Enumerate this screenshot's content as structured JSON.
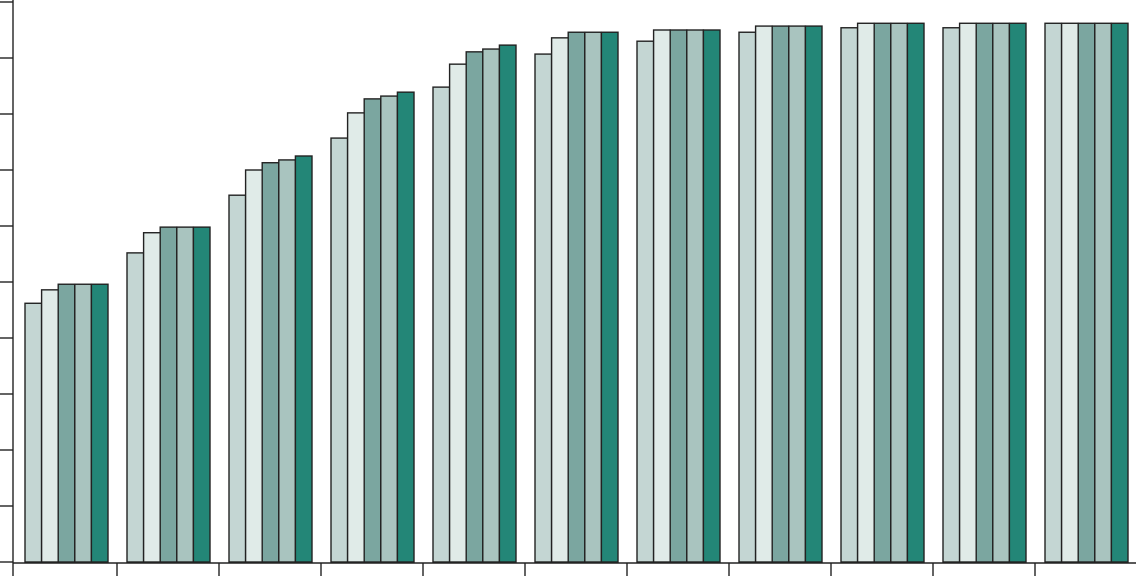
{
  "chart_data": {
    "type": "bar",
    "categories": [
      null,
      null,
      null,
      null,
      null,
      null,
      null,
      null,
      null,
      null,
      null
    ],
    "series": [
      {
        "color": "#c4d6d3",
        "values": [
          4.62,
          5.52,
          6.55,
          7.57,
          8.48,
          9.07,
          9.3,
          9.46,
          9.54,
          9.54,
          9.62
        ]
      },
      {
        "color": "#e0ebe8",
        "values": [
          4.86,
          5.88,
          7.0,
          8.02,
          8.89,
          9.36,
          9.5,
          9.57,
          9.62,
          9.62,
          9.62
        ]
      },
      {
        "color": "#7ba6a0",
        "values": [
          4.96,
          5.98,
          7.13,
          8.27,
          9.11,
          9.46,
          9.5,
          9.57,
          9.62,
          9.62,
          9.62
        ]
      },
      {
        "color": "#a9c4bf",
        "values": [
          4.96,
          5.98,
          7.18,
          8.32,
          9.16,
          9.46,
          9.5,
          9.57,
          9.62,
          9.62,
          9.62
        ]
      },
      {
        "color": "#238677",
        "values": [
          4.96,
          5.98,
          7.25,
          8.39,
          9.23,
          9.46,
          9.5,
          9.57,
          9.62,
          9.62,
          9.62
        ]
      }
    ],
    "ylim": [
      0,
      10
    ],
    "yticks": [
      0,
      1,
      2,
      3,
      4,
      5,
      6,
      7,
      8,
      9,
      10
    ]
  }
}
